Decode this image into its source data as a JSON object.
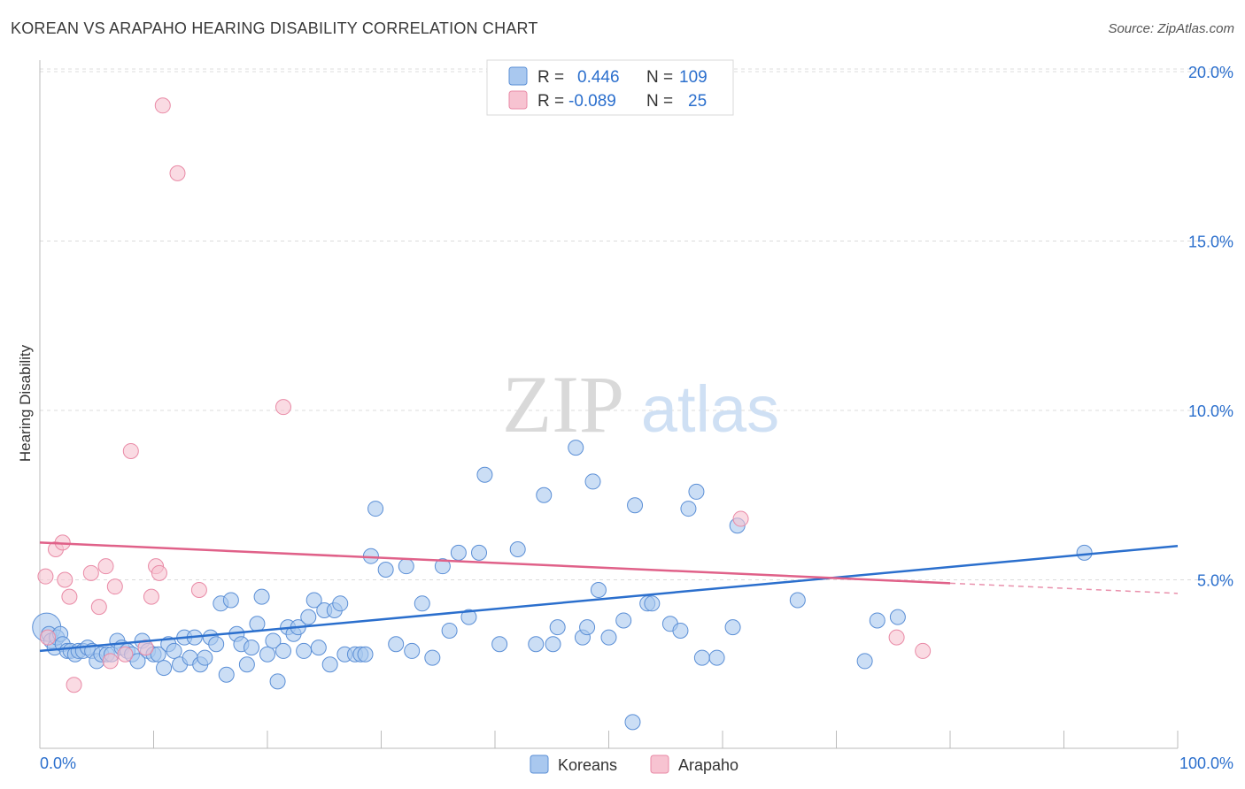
{
  "header": {
    "title": "KOREAN VS ARAPAHO HEARING DISABILITY CORRELATION CHART",
    "source": "Source: ZipAtlas.com"
  },
  "watermark": {
    "zip": "ZIP",
    "atlas": "atlas"
  },
  "legend_box": {
    "rows": [
      {
        "r_label": "R =",
        "r_value": "0.446",
        "n_label": "N =",
        "n_value": "109",
        "color": "#9ec3ee"
      },
      {
        "r_label": "R =",
        "r_value": "-0.089",
        "n_label": "N =",
        "n_value": "25",
        "color": "#f5b8c8"
      }
    ]
  },
  "colors": {
    "koreans_fill": "#a9c8ef",
    "koreans_stroke": "#5b8fd6",
    "koreans_line": "#2b6fcd",
    "arapaho_fill": "#f7c3d1",
    "arapaho_stroke": "#e98aa6",
    "arapaho_line": "#e06189",
    "value_text": "#2b6fcd",
    "grid": "#dcdcdc"
  },
  "chart_data": {
    "type": "scatter",
    "title": "KOREAN VS ARAPAHO HEARING DISABILITY CORRELATION CHART",
    "xlabel": "",
    "ylabel": "Hearing Disability",
    "xlim": [
      0,
      100
    ],
    "ylim": [
      0,
      20
    ],
    "x_tick_labels": [
      "0.0%",
      "100.0%"
    ],
    "y_ticks": [
      5,
      10,
      15,
      20
    ],
    "y_tick_labels": [
      "5.0%",
      "10.0%",
      "15.0%",
      "20.0%"
    ],
    "grid": true,
    "legend_position": "bottom-center",
    "series": [
      {
        "name": "Koreans",
        "r": 0.446,
        "n": 109,
        "trend": {
          "x": [
            0,
            100
          ],
          "y": [
            2.9,
            6.0
          ]
        },
        "points": [
          [
            0.6,
            3.6
          ],
          [
            0.8,
            3.4
          ],
          [
            1.0,
            3.2
          ],
          [
            1.3,
            3.0
          ],
          [
            1.5,
            3.3
          ],
          [
            1.8,
            3.4
          ],
          [
            2.0,
            3.1
          ],
          [
            2.4,
            2.9
          ],
          [
            2.7,
            2.9
          ],
          [
            3.1,
            2.8
          ],
          [
            3.4,
            2.9
          ],
          [
            3.8,
            2.9
          ],
          [
            4.2,
            3.0
          ],
          [
            4.6,
            2.9
          ],
          [
            5.0,
            2.6
          ],
          [
            5.4,
            2.8
          ],
          [
            5.9,
            2.8
          ],
          [
            6.3,
            2.8
          ],
          [
            6.8,
            3.2
          ],
          [
            7.2,
            3.0
          ],
          [
            7.7,
            2.9
          ],
          [
            8.1,
            2.8
          ],
          [
            8.6,
            2.6
          ],
          [
            9.0,
            3.2
          ],
          [
            9.5,
            2.9
          ],
          [
            10.0,
            2.8
          ],
          [
            10.4,
            2.8
          ],
          [
            10.9,
            2.4
          ],
          [
            11.3,
            3.1
          ],
          [
            11.8,
            2.9
          ],
          [
            12.3,
            2.5
          ],
          [
            12.7,
            3.3
          ],
          [
            13.2,
            2.7
          ],
          [
            13.6,
            3.3
          ],
          [
            14.1,
            2.5
          ],
          [
            14.5,
            2.7
          ],
          [
            15.0,
            3.3
          ],
          [
            15.5,
            3.1
          ],
          [
            15.9,
            4.3
          ],
          [
            16.4,
            2.2
          ],
          [
            16.8,
            4.4
          ],
          [
            17.3,
            3.4
          ],
          [
            17.7,
            3.1
          ],
          [
            18.2,
            2.5
          ],
          [
            18.6,
            3.0
          ],
          [
            19.1,
            3.7
          ],
          [
            19.5,
            4.5
          ],
          [
            20.0,
            2.8
          ],
          [
            20.5,
            3.2
          ],
          [
            20.9,
            2.0
          ],
          [
            21.4,
            2.9
          ],
          [
            21.8,
            3.6
          ],
          [
            22.3,
            3.4
          ],
          [
            22.7,
            3.6
          ],
          [
            23.2,
            2.9
          ],
          [
            23.6,
            3.9
          ],
          [
            24.1,
            4.4
          ],
          [
            24.5,
            3.0
          ],
          [
            25.0,
            4.1
          ],
          [
            25.5,
            2.5
          ],
          [
            25.9,
            4.1
          ],
          [
            26.4,
            4.3
          ],
          [
            26.8,
            2.8
          ],
          [
            27.7,
            2.8
          ],
          [
            28.2,
            2.8
          ],
          [
            28.6,
            2.8
          ],
          [
            29.1,
            5.7
          ],
          [
            29.5,
            7.1
          ],
          [
            30.4,
            5.3
          ],
          [
            31.3,
            3.1
          ],
          [
            32.2,
            5.4
          ],
          [
            32.7,
            2.9
          ],
          [
            33.6,
            4.3
          ],
          [
            34.5,
            2.7
          ],
          [
            35.4,
            5.4
          ],
          [
            36.0,
            3.5
          ],
          [
            36.8,
            5.8
          ],
          [
            37.7,
            3.9
          ],
          [
            38.6,
            5.8
          ],
          [
            39.1,
            8.1
          ],
          [
            40.4,
            3.1
          ],
          [
            42.0,
            5.9
          ],
          [
            43.6,
            3.1
          ],
          [
            44.3,
            7.5
          ],
          [
            45.1,
            3.1
          ],
          [
            45.5,
            3.6
          ],
          [
            47.1,
            8.9
          ],
          [
            47.7,
            3.3
          ],
          [
            48.1,
            3.6
          ],
          [
            48.6,
            7.9
          ],
          [
            49.1,
            4.7
          ],
          [
            50.0,
            3.3
          ],
          [
            51.3,
            3.8
          ],
          [
            52.1,
            0.8
          ],
          [
            52.3,
            7.2
          ],
          [
            53.4,
            4.3
          ],
          [
            53.8,
            4.3
          ],
          [
            55.4,
            3.7
          ],
          [
            56.3,
            3.5
          ],
          [
            57.0,
            7.1
          ],
          [
            57.7,
            7.6
          ],
          [
            58.2,
            2.7
          ],
          [
            59.5,
            2.7
          ],
          [
            60.9,
            3.6
          ],
          [
            61.3,
            6.6
          ],
          [
            66.6,
            4.4
          ],
          [
            72.5,
            2.6
          ],
          [
            73.6,
            3.8
          ],
          [
            75.4,
            3.9
          ],
          [
            91.8,
            5.8
          ]
        ]
      },
      {
        "name": "Arapaho",
        "r": -0.089,
        "n": 25,
        "trend": {
          "x": [
            0,
            80
          ],
          "y": [
            6.1,
            4.9
          ]
        },
        "trend_extension": {
          "x": [
            80,
            100
          ],
          "y": [
            4.9,
            4.6
          ]
        },
        "points": [
          [
            0.5,
            5.1
          ],
          [
            0.7,
            3.3
          ],
          [
            1.4,
            5.9
          ],
          [
            2.0,
            6.1
          ],
          [
            2.2,
            5.0
          ],
          [
            2.6,
            4.5
          ],
          [
            3.0,
            1.9
          ],
          [
            4.5,
            5.2
          ],
          [
            5.2,
            4.2
          ],
          [
            5.8,
            5.4
          ],
          [
            6.2,
            2.6
          ],
          [
            6.6,
            4.8
          ],
          [
            7.5,
            2.8
          ],
          [
            8.0,
            8.8
          ],
          [
            9.3,
            3.0
          ],
          [
            9.8,
            4.5
          ],
          [
            10.2,
            5.4
          ],
          [
            10.5,
            5.2
          ],
          [
            10.8,
            19.0
          ],
          [
            12.1,
            17.0
          ],
          [
            14.0,
            4.7
          ],
          [
            21.4,
            10.1
          ],
          [
            61.6,
            6.8
          ],
          [
            75.3,
            3.3
          ],
          [
            77.6,
            2.9
          ]
        ]
      }
    ]
  },
  "bottom_legend": {
    "items": [
      {
        "label": "Koreans"
      },
      {
        "label": "Arapaho"
      }
    ]
  }
}
